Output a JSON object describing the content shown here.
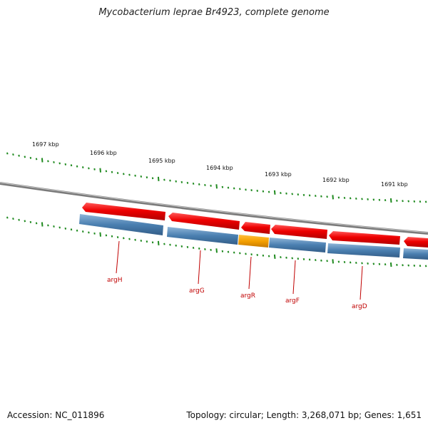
{
  "title": "Mycobacterium leprae Br4923, complete genome",
  "footer": {
    "accession": "Accession: NC_011896",
    "summary": "Topology: circular; Length: 3,268,071 bp; Genes: 1,651"
  },
  "kbp_labels": [
    "1697 kbp",
    "1696 kbp",
    "1695 kbp",
    "1694 kbp",
    "1693 kbp",
    "1692 kbp",
    "1691 kbp"
  ],
  "genes": [
    "argH",
    "argG",
    "argR",
    "argF",
    "argD"
  ],
  "colors": {
    "gene_red": "#ee0000",
    "gene_blue": "#4a7fb0",
    "gene_orange": "#f5a000",
    "tick_green": "#1f8a1f",
    "backbone_gray": "#888888",
    "label_red": "#c00000"
  }
}
